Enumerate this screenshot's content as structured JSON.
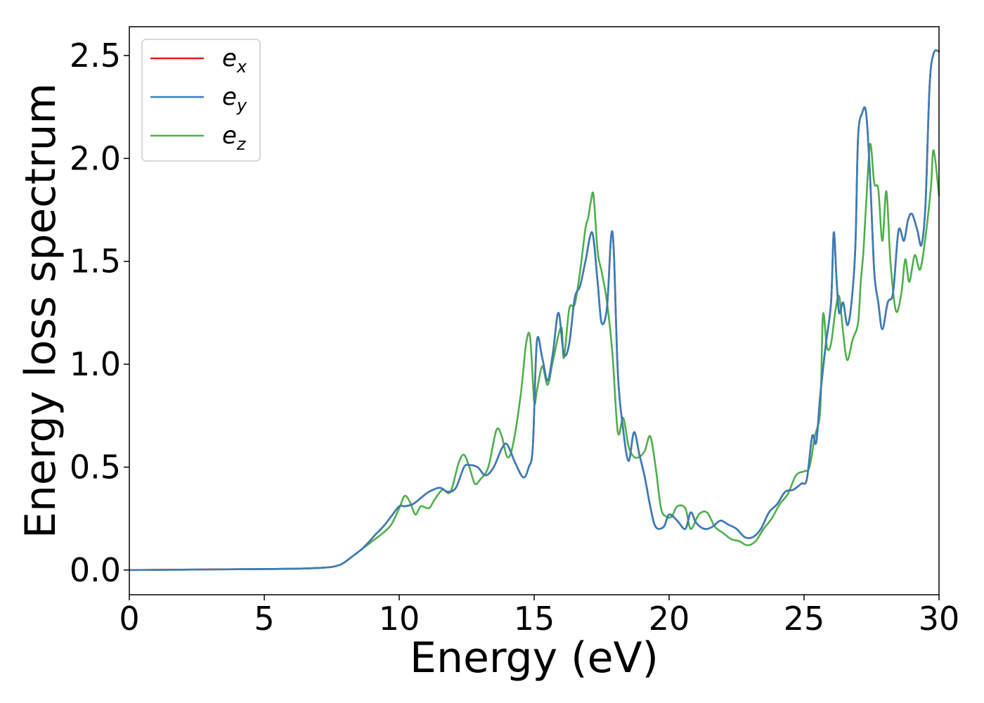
{
  "chart_data": {
    "type": "line",
    "title": "",
    "xlabel": "Energy (eV)",
    "ylabel": "Energy loss spectrum",
    "xlim": [
      0,
      30
    ],
    "ylim": [
      -0.12,
      2.64
    ],
    "xticks": [
      0,
      5,
      10,
      15,
      20,
      25,
      30
    ],
    "xtick_labels": [
      "0",
      "5",
      "10",
      "15",
      "20",
      "25",
      "30"
    ],
    "yticks": [
      0.0,
      0.5,
      1.0,
      1.5,
      2.0,
      2.5
    ],
    "ytick_labels": [
      "0.0",
      "0.5",
      "1.0",
      "1.5",
      "2.0",
      "2.5"
    ],
    "grid": false,
    "legend_position": "top-left",
    "series": [
      {
        "name": "e_x",
        "label_base": "e",
        "label_sub": "x",
        "color": "#e41a1c",
        "x": [
          0,
          2,
          4,
          6,
          7,
          7.5,
          7.8,
          8,
          8.3,
          8.6,
          8.9,
          9.1,
          9.4,
          9.7,
          10.0,
          10.2,
          10.5,
          10.8,
          11.1,
          11.5,
          11.8,
          12.1,
          12.4,
          12.6,
          12.9,
          13.2,
          13.5,
          13.8,
          14.0,
          14.3,
          14.6,
          14.8,
          14.95,
          15.1,
          15.3,
          15.5,
          15.7,
          15.9,
          16.1,
          16.3,
          16.5,
          16.7,
          16.9,
          17.15,
          17.35,
          17.5,
          17.7,
          17.85,
          17.95,
          18.1,
          18.3,
          18.5,
          18.7,
          18.9,
          19.1,
          19.3,
          19.5,
          19.8,
          20.0,
          20.3,
          20.6,
          20.8,
          21.0,
          21.3,
          21.6,
          21.9,
          22.2,
          22.5,
          22.8,
          23.1,
          23.4,
          23.7,
          24.0,
          24.3,
          24.6,
          24.9,
          25.1,
          25.3,
          25.45,
          25.6,
          25.8,
          26.0,
          26.1,
          26.2,
          26.3,
          26.45,
          26.6,
          26.75,
          26.9,
          27.0,
          27.15,
          27.3,
          27.45,
          27.6,
          27.75,
          27.9,
          28.1,
          28.3,
          28.5,
          28.7,
          28.85,
          29.0,
          29.2,
          29.35,
          29.5,
          29.65,
          29.8,
          30.0
        ],
        "y": [
          0.0,
          0.002,
          0.004,
          0.006,
          0.01,
          0.015,
          0.025,
          0.04,
          0.07,
          0.1,
          0.14,
          0.17,
          0.21,
          0.26,
          0.31,
          0.31,
          0.32,
          0.35,
          0.38,
          0.4,
          0.38,
          0.4,
          0.5,
          0.51,
          0.5,
          0.46,
          0.5,
          0.59,
          0.61,
          0.52,
          0.45,
          0.5,
          0.6,
          1.11,
          1.03,
          0.92,
          1.06,
          1.25,
          1.05,
          1.1,
          1.32,
          1.38,
          1.5,
          1.64,
          1.4,
          1.2,
          1.28,
          1.62,
          1.55,
          0.96,
          0.68,
          0.53,
          0.67,
          0.56,
          0.45,
          0.31,
          0.21,
          0.21,
          0.27,
          0.24,
          0.2,
          0.28,
          0.23,
          0.2,
          0.21,
          0.24,
          0.22,
          0.2,
          0.16,
          0.16,
          0.2,
          0.28,
          0.32,
          0.38,
          0.39,
          0.42,
          0.44,
          0.65,
          0.62,
          0.85,
          1.09,
          1.3,
          1.64,
          1.42,
          1.25,
          1.3,
          1.19,
          1.29,
          1.57,
          2.1,
          2.22,
          2.22,
          1.9,
          1.45,
          1.3,
          1.17,
          1.3,
          1.35,
          1.65,
          1.6,
          1.7,
          1.73,
          1.65,
          1.58,
          1.78,
          2.35,
          2.51,
          2.52
        ]
      },
      {
        "name": "e_y",
        "label_base": "e",
        "label_sub": "y",
        "color": "#377eb8",
        "x": [
          0,
          2,
          4,
          6,
          7,
          7.5,
          7.8,
          8,
          8.3,
          8.6,
          8.9,
          9.1,
          9.4,
          9.7,
          10.0,
          10.2,
          10.5,
          10.8,
          11.1,
          11.5,
          11.8,
          12.1,
          12.4,
          12.6,
          12.9,
          13.2,
          13.5,
          13.8,
          14.0,
          14.3,
          14.6,
          14.8,
          14.95,
          15.1,
          15.3,
          15.5,
          15.7,
          15.9,
          16.1,
          16.3,
          16.5,
          16.7,
          16.9,
          17.15,
          17.35,
          17.5,
          17.7,
          17.85,
          17.95,
          18.1,
          18.3,
          18.5,
          18.7,
          18.9,
          19.1,
          19.3,
          19.5,
          19.8,
          20.0,
          20.3,
          20.6,
          20.8,
          21.0,
          21.3,
          21.6,
          21.9,
          22.2,
          22.5,
          22.8,
          23.1,
          23.4,
          23.7,
          24.0,
          24.3,
          24.6,
          24.9,
          25.1,
          25.3,
          25.45,
          25.6,
          25.8,
          26.0,
          26.1,
          26.2,
          26.3,
          26.45,
          26.6,
          26.75,
          26.9,
          27.0,
          27.15,
          27.3,
          27.45,
          27.6,
          27.75,
          27.9,
          28.1,
          28.3,
          28.5,
          28.7,
          28.85,
          29.0,
          29.2,
          29.35,
          29.5,
          29.65,
          29.8,
          30.0
        ],
        "y": [
          0.0,
          0.002,
          0.004,
          0.006,
          0.01,
          0.015,
          0.025,
          0.04,
          0.07,
          0.1,
          0.14,
          0.17,
          0.21,
          0.26,
          0.31,
          0.31,
          0.32,
          0.35,
          0.38,
          0.4,
          0.38,
          0.4,
          0.5,
          0.51,
          0.5,
          0.46,
          0.5,
          0.59,
          0.61,
          0.52,
          0.45,
          0.5,
          0.6,
          1.11,
          1.03,
          0.92,
          1.06,
          1.25,
          1.05,
          1.1,
          1.32,
          1.38,
          1.5,
          1.64,
          1.4,
          1.2,
          1.28,
          1.62,
          1.55,
          0.96,
          0.68,
          0.53,
          0.67,
          0.56,
          0.45,
          0.31,
          0.21,
          0.21,
          0.27,
          0.24,
          0.2,
          0.28,
          0.23,
          0.2,
          0.21,
          0.24,
          0.22,
          0.2,
          0.16,
          0.16,
          0.2,
          0.28,
          0.32,
          0.38,
          0.39,
          0.42,
          0.44,
          0.65,
          0.62,
          0.85,
          1.09,
          1.3,
          1.64,
          1.42,
          1.25,
          1.3,
          1.19,
          1.29,
          1.57,
          2.1,
          2.22,
          2.22,
          1.9,
          1.45,
          1.3,
          1.17,
          1.3,
          1.35,
          1.65,
          1.6,
          1.7,
          1.73,
          1.65,
          1.58,
          1.78,
          2.35,
          2.51,
          2.52
        ]
      },
      {
        "name": "e_z",
        "label_base": "e",
        "label_sub": "z",
        "color": "#4daf4a",
        "x": [
          0,
          2,
          4,
          6,
          7,
          7.5,
          7.8,
          8,
          8.3,
          8.6,
          8.9,
          9.1,
          9.4,
          9.7,
          10.0,
          10.2,
          10.4,
          10.6,
          10.8,
          11.1,
          11.3,
          11.6,
          11.9,
          12.2,
          12.4,
          12.6,
          12.8,
          13.0,
          13.3,
          13.6,
          13.8,
          14.0,
          14.2,
          14.5,
          14.7,
          14.85,
          15.0,
          15.1,
          15.3,
          15.5,
          15.7,
          16.0,
          16.1,
          16.3,
          16.5,
          16.7,
          16.9,
          17.0,
          17.1,
          17.2,
          17.35,
          17.5,
          17.7,
          17.9,
          18.1,
          18.3,
          18.5,
          18.7,
          18.9,
          19.1,
          19.3,
          19.5,
          19.7,
          19.9,
          20.1,
          20.3,
          20.6,
          20.8,
          21.1,
          21.4,
          21.7,
          22.0,
          22.3,
          22.6,
          22.9,
          23.2,
          23.5,
          23.8,
          24.1,
          24.4,
          24.7,
          25.0,
          25.2,
          25.4,
          25.6,
          25.7,
          25.85,
          26.0,
          26.15,
          26.3,
          26.45,
          26.6,
          26.8,
          27.0,
          27.1,
          27.2,
          27.3,
          27.45,
          27.6,
          27.75,
          27.9,
          28.05,
          28.2,
          28.4,
          28.6,
          28.75,
          28.9,
          29.1,
          29.3,
          29.5,
          29.7,
          29.8,
          30.0
        ],
        "y": [
          0.0,
          0.002,
          0.004,
          0.006,
          0.01,
          0.015,
          0.025,
          0.04,
          0.07,
          0.1,
          0.13,
          0.15,
          0.18,
          0.22,
          0.3,
          0.36,
          0.33,
          0.27,
          0.31,
          0.3,
          0.34,
          0.39,
          0.38,
          0.52,
          0.56,
          0.5,
          0.42,
          0.44,
          0.5,
          0.68,
          0.65,
          0.55,
          0.6,
          0.85,
          1.1,
          1.13,
          0.82,
          0.87,
          0.99,
          0.9,
          1.02,
          1.18,
          1.03,
          1.27,
          1.29,
          1.45,
          1.66,
          1.71,
          1.79,
          1.82,
          1.55,
          1.45,
          1.3,
          1.05,
          0.67,
          0.74,
          0.6,
          0.55,
          0.55,
          0.58,
          0.65,
          0.5,
          0.3,
          0.26,
          0.26,
          0.31,
          0.3,
          0.2,
          0.27,
          0.28,
          0.21,
          0.18,
          0.15,
          0.14,
          0.12,
          0.14,
          0.2,
          0.25,
          0.32,
          0.37,
          0.46,
          0.48,
          0.5,
          0.65,
          0.78,
          1.24,
          1.08,
          1.1,
          1.25,
          1.33,
          1.15,
          1.02,
          1.12,
          1.2,
          1.4,
          1.55,
          1.78,
          2.07,
          1.88,
          1.85,
          1.6,
          1.84,
          1.5,
          1.26,
          1.34,
          1.51,
          1.4,
          1.53,
          1.46,
          1.62,
          1.86,
          2.04,
          1.82
        ]
      }
    ]
  }
}
